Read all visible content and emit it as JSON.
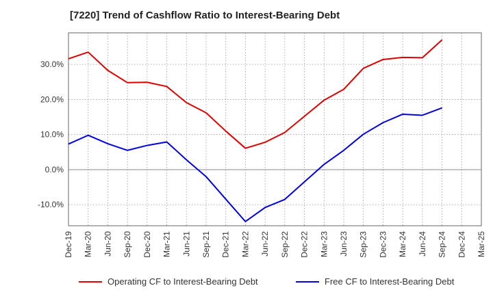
{
  "chart_data": {
    "type": "line",
    "title": "[7220]  Trend of Cashflow Ratio to Interest-Bearing Debt",
    "xlabel": "",
    "ylabel": "",
    "ylim": [
      -16,
      39
    ],
    "y_ticks": [
      -10,
      0,
      10,
      20,
      30
    ],
    "y_tick_labels": [
      "-10.0%",
      "0.0%",
      "10.0%",
      "20.0%",
      "30.0%"
    ],
    "categories": [
      "Dec-19",
      "Mar-20",
      "Jun-20",
      "Sep-20",
      "Dec-20",
      "Mar-21",
      "Jun-21",
      "Sep-21",
      "Dec-21",
      "Mar-22",
      "Jun-22",
      "Sep-22",
      "Dec-22",
      "Mar-23",
      "Jun-23",
      "Sep-23",
      "Dec-23",
      "Mar-24",
      "Jun-24",
      "Sep-24",
      "Dec-24",
      "Mar-25"
    ],
    "grid": true,
    "legend_position": "bottom",
    "series": [
      {
        "name": "Operating CF to Interest-Bearing Debt",
        "color": "#e00000",
        "values": [
          31.6,
          33.5,
          28.3,
          24.8,
          24.9,
          23.7,
          19.1,
          16.2,
          11.0,
          6.1,
          7.8,
          10.6,
          15.2,
          19.8,
          22.9,
          28.9,
          31.4,
          32.0,
          31.9,
          37.0,
          null,
          null
        ]
      },
      {
        "name": "Free CF to Interest-Bearing Debt",
        "color": "#0000e0",
        "values": [
          7.3,
          9.8,
          7.4,
          5.5,
          6.9,
          7.9,
          2.8,
          -2.0,
          -8.4,
          -14.8,
          -10.8,
          -8.5,
          -3.5,
          1.5,
          5.5,
          10.1,
          13.4,
          15.8,
          15.5,
          17.6,
          null,
          null
        ]
      }
    ]
  }
}
